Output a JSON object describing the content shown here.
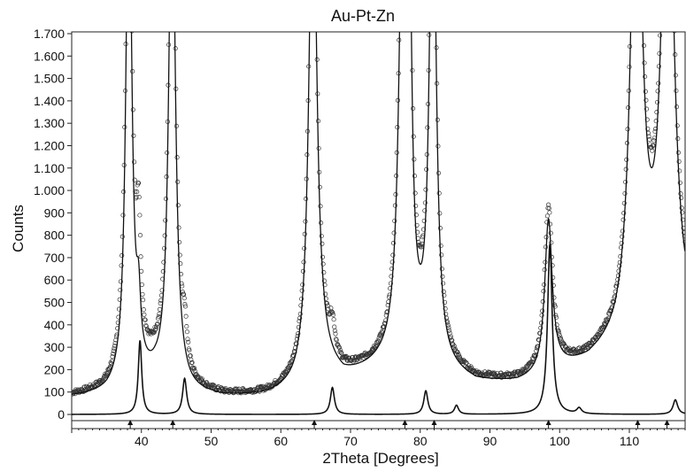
{
  "chart_data": {
    "type": "line",
    "title": "Au-Pt-Zn",
    "xlabel": "2Theta [Degrees]",
    "ylabel": "Counts",
    "xlim": [
      30,
      118
    ],
    "ylim": [
      0,
      1700
    ],
    "grid": false,
    "x_ticks": [
      40,
      50,
      60,
      70,
      80,
      90,
      100,
      110
    ],
    "y_ticks": [
      0,
      100,
      200,
      300,
      400,
      500,
      600,
      700,
      800,
      900,
      1000,
      1100,
      1200,
      1300,
      1400,
      1500,
      1600,
      1700
    ],
    "y_tick_labels": [
      "0",
      "100",
      "200",
      "300",
      "400",
      "500",
      "600",
      "700",
      "800",
      "900",
      "1.000",
      "1.100",
      "1.200",
      "1.300",
      "1.400",
      "1.500",
      "1.600",
      "1.700"
    ],
    "series": [
      {
        "style": "observed-points",
        "background": [
          [
            30,
            80
          ],
          [
            35,
            95
          ],
          [
            39.5,
            170
          ],
          [
            42,
            180
          ],
          [
            47,
            90
          ],
          [
            52,
            75
          ],
          [
            58,
            80
          ],
          [
            62,
            110
          ],
          [
            66,
            200
          ],
          [
            69,
            160
          ],
          [
            74,
            200
          ],
          [
            80,
            220
          ],
          [
            84,
            180
          ],
          [
            88,
            140
          ],
          [
            94,
            140
          ],
          [
            97,
            160
          ],
          [
            100,
            200
          ],
          [
            104,
            230
          ],
          [
            108,
            300
          ],
          [
            112,
            470
          ],
          [
            118,
            400
          ]
        ],
        "peaks": [
          {
            "center": 38.2,
            "height": 2400,
            "width": 0.55
          },
          {
            "center": 39.6,
            "height": 500,
            "width": 0.35
          },
          {
            "center": 44.4,
            "height": 2400,
            "width": 0.6
          },
          {
            "center": 46.2,
            "height": 150,
            "width": 0.4
          },
          {
            "center": 64.6,
            "height": 2400,
            "width": 0.7
          },
          {
            "center": 67.4,
            "height": 120,
            "width": 0.4
          },
          {
            "center": 77.6,
            "height": 2400,
            "width": 0.7
          },
          {
            "center": 78.4,
            "height": 1600,
            "width": 0.4
          },
          {
            "center": 81.8,
            "height": 2400,
            "width": 0.6
          },
          {
            "center": 98.4,
            "height": 720,
            "width": 0.7
          },
          {
            "center": 111.0,
            "height": 2400,
            "width": 0.9
          },
          {
            "center": 115.5,
            "height": 2400,
            "width": 1.0
          }
        ]
      },
      {
        "style": "calculated-line",
        "background": [
          [
            30,
            75
          ],
          [
            35,
            85
          ],
          [
            39.5,
            130
          ],
          [
            42,
            140
          ],
          [
            47,
            85
          ],
          [
            52,
            70
          ],
          [
            58,
            75
          ],
          [
            62,
            100
          ],
          [
            66,
            190
          ],
          [
            69,
            150
          ],
          [
            74,
            190
          ],
          [
            80,
            210
          ],
          [
            84,
            170
          ],
          [
            88,
            130
          ],
          [
            94,
            130
          ],
          [
            97,
            150
          ],
          [
            100,
            190
          ],
          [
            104,
            220
          ],
          [
            108,
            290
          ],
          [
            112,
            450
          ],
          [
            118,
            380
          ]
        ],
        "peaks": [
          {
            "center": 38.2,
            "height": 2400,
            "width": 0.5
          },
          {
            "center": 39.6,
            "height": 250,
            "width": 0.35
          },
          {
            "center": 44.4,
            "height": 2400,
            "width": 0.55
          },
          {
            "center": 64.6,
            "height": 2400,
            "width": 0.65
          },
          {
            "center": 77.6,
            "height": 2400,
            "width": 0.65
          },
          {
            "center": 78.4,
            "height": 1400,
            "width": 0.4
          },
          {
            "center": 81.8,
            "height": 2400,
            "width": 0.55
          },
          {
            "center": 98.4,
            "height": 680,
            "width": 0.65
          },
          {
            "center": 111.0,
            "height": 2400,
            "width": 0.85
          },
          {
            "center": 115.5,
            "height": 2400,
            "width": 0.95
          }
        ]
      },
      {
        "style": "component-line",
        "background": [
          [
            30,
            0
          ],
          [
            118,
            0
          ]
        ],
        "peaks": [
          {
            "center": 39.8,
            "height": 330,
            "width": 0.3
          },
          {
            "center": 46.2,
            "height": 160,
            "width": 0.35
          },
          {
            "center": 67.4,
            "height": 120,
            "width": 0.35
          },
          {
            "center": 80.8,
            "height": 105,
            "width": 0.35
          },
          {
            "center": 85.2,
            "height": 40,
            "width": 0.35
          },
          {
            "center": 98.6,
            "height": 760,
            "width": 0.4
          },
          {
            "center": 102.8,
            "height": 25,
            "width": 0.4
          },
          {
            "center": 116.6,
            "height": 65,
            "width": 0.4
          }
        ]
      }
    ],
    "reflection_markers": [
      38.4,
      44.5,
      64.8,
      77.8,
      82.0,
      98.4,
      111.2,
      115.4
    ]
  }
}
